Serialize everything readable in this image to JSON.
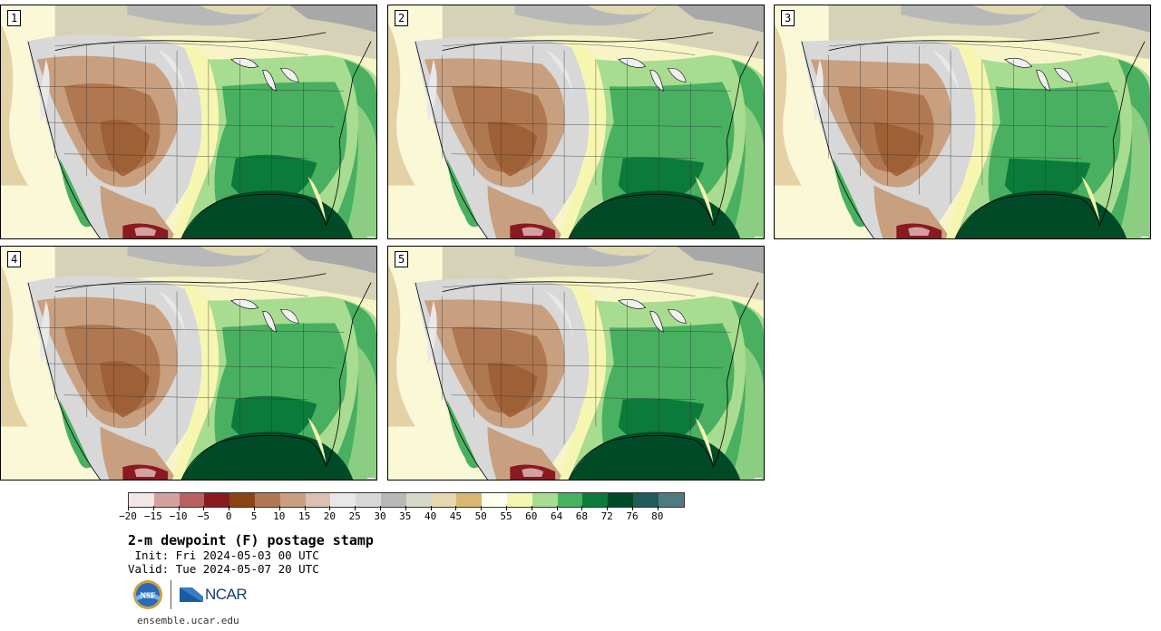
{
  "panels": [
    {
      "label": "1"
    },
    {
      "label": "2"
    },
    {
      "label": "3"
    },
    {
      "label": "4"
    },
    {
      "label": "5"
    }
  ],
  "colorbar": {
    "colors": [
      "#f4e6e6",
      "#d4a0a0",
      "#b86060",
      "#8a1a22",
      "#8b4513",
      "#b07850",
      "#c8a080",
      "#dcc0b0",
      "#e8e8e8",
      "#d8d8d8",
      "#b8b8b8",
      "#d8d8c8",
      "#e4d8b0",
      "#d8b870",
      "#fffff0",
      "#f6f6b0",
      "#a8dc90",
      "#48b060",
      "#0c7a3a",
      "#004a28",
      "#205a5a",
      "#507a80"
    ],
    "tick_labels": [
      "−20",
      "−15",
      "−10",
      "−5",
      "0",
      "5",
      "10",
      "15",
      "20",
      "25",
      "30",
      "35",
      "40",
      "45",
      "50",
      "55",
      "60",
      "64",
      "68",
      "72",
      "76",
      "80"
    ]
  },
  "title": "2-m dewpoint (F) postage stamp",
  "init": " Init: Fri 2024-05-03 00 UTC",
  "valid": "Valid: Tue 2024-05-07 20 UTC",
  "logos": {
    "nsf_text": "NSF",
    "ncar_text": "NCAR"
  },
  "website": "ensemble.ucar.edu",
  "icons": {
    "nsf": "nsf-logo-icon",
    "ncar": "ncar-logo-icon"
  }
}
